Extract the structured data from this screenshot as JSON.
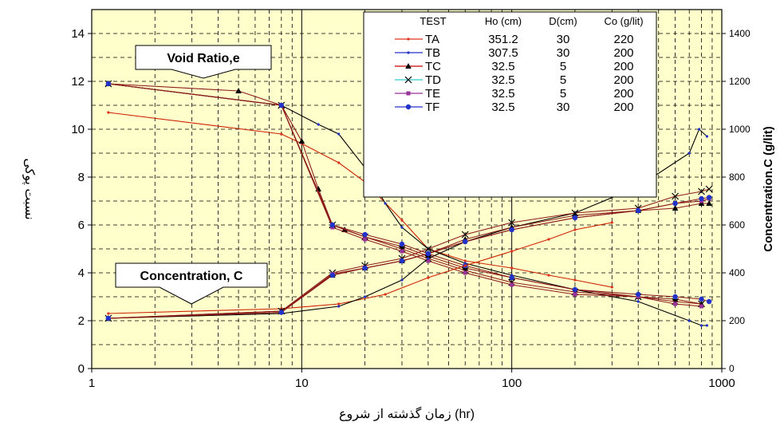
{
  "chart_data": {
    "type": "line",
    "x_scale": "log",
    "xlim": [
      1,
      1000
    ],
    "ylim": [
      0,
      15
    ],
    "y2lim": [
      0,
      1500
    ],
    "xticks": [
      "1",
      "10",
      "100",
      "1000"
    ],
    "yticks": [
      "0",
      "2",
      "4",
      "6",
      "8",
      "10",
      "12",
      "14"
    ],
    "y2ticks": [
      "0",
      "200",
      "400",
      "600",
      "800",
      "1000",
      "1200",
      "1400"
    ],
    "xlabel_text": "زمان گذشته از شروع",
    "xlabel_unit": "(hr)",
    "ylabel": "نسبت پوکی",
    "y2label": "Concentration.C (g/lit)",
    "plot_background": "#ffffcc",
    "grid": true,
    "annotations": {
      "void_ratio": "Void Ratio,e",
      "concentration": "Concentration, C"
    },
    "legend": {
      "placement": "top-right",
      "headers": [
        "TEST",
        "Ho (cm)",
        "D(cm)",
        "Co (g/lit)"
      ],
      "rows": [
        {
          "name": "TA",
          "ho": "351.2",
          "d": "30",
          "co": "220",
          "color": "#e0301e",
          "marker": "dot"
        },
        {
          "name": "TB",
          "ho": "307.5",
          "d": "30",
          "co": "200",
          "color": "#2233cc",
          "marker": "dot"
        },
        {
          "name": "TC",
          "ho": "32.5",
          "d": "5",
          "co": "200",
          "color": "#cc0000",
          "marker": "triangle"
        },
        {
          "name": "TD",
          "ho": "32.5",
          "d": "5",
          "co": "200",
          "color": "#33cccc",
          "marker": "x"
        },
        {
          "name": "TE",
          "ho": "32.5",
          "d": "5",
          "co": "200",
          "color": "#993399",
          "marker": "square"
        },
        {
          "name": "TF",
          "ho": "32.5",
          "d": "30",
          "co": "200",
          "color": "#2233cc",
          "marker": "circle"
        }
      ]
    },
    "series": [
      {
        "name": "TA",
        "kind": "void_ratio",
        "x": [
          1.2,
          8,
          10,
          15,
          20,
          30,
          40,
          60,
          100,
          150,
          200,
          300
        ],
        "y": [
          10.7,
          9.8,
          9.4,
          8.6,
          7.8,
          6.2,
          5.0,
          4.5,
          4.2,
          3.9,
          3.7,
          3.4
        ]
      },
      {
        "name": "TB",
        "kind": "void_ratio",
        "x": [
          1.2,
          8,
          12,
          15,
          20,
          25,
          30,
          40,
          60,
          100,
          200,
          400,
          700,
          800,
          850
        ],
        "y": [
          11.9,
          11.0,
          10.2,
          9.8,
          8.4,
          6.9,
          5.9,
          5.0,
          4.4,
          3.9,
          3.3,
          2.8,
          2.0,
          1.8,
          1.8
        ]
      },
      {
        "name": "TC",
        "kind": "void_ratio",
        "x": [
          1.2,
          5,
          8,
          10,
          12,
          14,
          16,
          20,
          30,
          40,
          60,
          100,
          200,
          400,
          600,
          800
        ],
        "y": [
          11.9,
          11.6,
          11.0,
          9.5,
          7.5,
          6.0,
          5.8,
          5.5,
          5.1,
          4.7,
          4.2,
          3.8,
          3.3,
          3.0,
          2.9,
          2.7
        ]
      },
      {
        "name": "TD",
        "kind": "void_ratio",
        "x": [
          1.2,
          8,
          14,
          20,
          30,
          40,
          60,
          100,
          200,
          400,
          600,
          800
        ],
        "y": [
          11.9,
          11.0,
          6.0,
          5.5,
          5.0,
          4.6,
          4.1,
          3.6,
          3.2,
          3.0,
          2.8,
          2.7
        ]
      },
      {
        "name": "TE",
        "kind": "void_ratio",
        "x": [
          1.2,
          8,
          14,
          20,
          30,
          40,
          60,
          100,
          200,
          400,
          600,
          800
        ],
        "y": [
          11.9,
          11.0,
          5.9,
          5.4,
          4.9,
          4.5,
          4.0,
          3.5,
          3.1,
          3.0,
          2.7,
          2.6
        ]
      },
      {
        "name": "TF",
        "kind": "void_ratio",
        "x": [
          1.2,
          8,
          14,
          20,
          30,
          40,
          60,
          100,
          200,
          400,
          600,
          800,
          870
        ],
        "y": [
          11.9,
          11.0,
          6.0,
          5.6,
          5.2,
          4.8,
          4.3,
          3.8,
          3.3,
          3.1,
          3.0,
          2.9,
          2.8
        ]
      },
      {
        "name": "TA",
        "kind": "concentration",
        "x": [
          1.2,
          8,
          15,
          25,
          40,
          60,
          100,
          150,
          200,
          300
        ],
        "y": [
          230,
          250,
          270,
          310,
          380,
          430,
          490,
          540,
          580,
          610
        ]
      },
      {
        "name": "TB",
        "kind": "concentration",
        "x": [
          1.2,
          8,
          15,
          20,
          30,
          40,
          60,
          100,
          200,
          400,
          700,
          780,
          850
        ],
        "y": [
          210,
          230,
          260,
          300,
          370,
          460,
          530,
          590,
          650,
          760,
          900,
          1000,
          970
        ]
      },
      {
        "name": "TC",
        "kind": "concentration",
        "x": [
          1.2,
          8,
          14,
          20,
          30,
          40,
          60,
          100,
          200,
          400,
          600,
          800,
          870
        ],
        "y": [
          210,
          240,
          390,
          420,
          450,
          480,
          540,
          590,
          640,
          660,
          670,
          690,
          690
        ]
      },
      {
        "name": "TD",
        "kind": "concentration",
        "x": [
          1.2,
          8,
          14,
          20,
          30,
          40,
          60,
          100,
          200,
          400,
          600,
          800,
          870
        ],
        "y": [
          210,
          240,
          400,
          430,
          460,
          500,
          560,
          610,
          650,
          670,
          720,
          740,
          750
        ]
      },
      {
        "name": "TE",
        "kind": "concentration",
        "x": [
          1.2,
          8,
          14,
          20,
          30,
          40,
          60,
          100,
          200,
          400,
          600,
          800,
          870
        ],
        "y": [
          210,
          235,
          395,
          420,
          450,
          480,
          530,
          580,
          630,
          660,
          690,
          700,
          710
        ]
      },
      {
        "name": "TF",
        "kind": "concentration",
        "x": [
          1.2,
          8,
          14,
          20,
          30,
          40,
          60,
          100,
          200,
          400,
          600,
          800,
          870
        ],
        "y": [
          210,
          235,
          390,
          420,
          450,
          480,
          530,
          580,
          630,
          660,
          690,
          710,
          715
        ]
      }
    ]
  }
}
